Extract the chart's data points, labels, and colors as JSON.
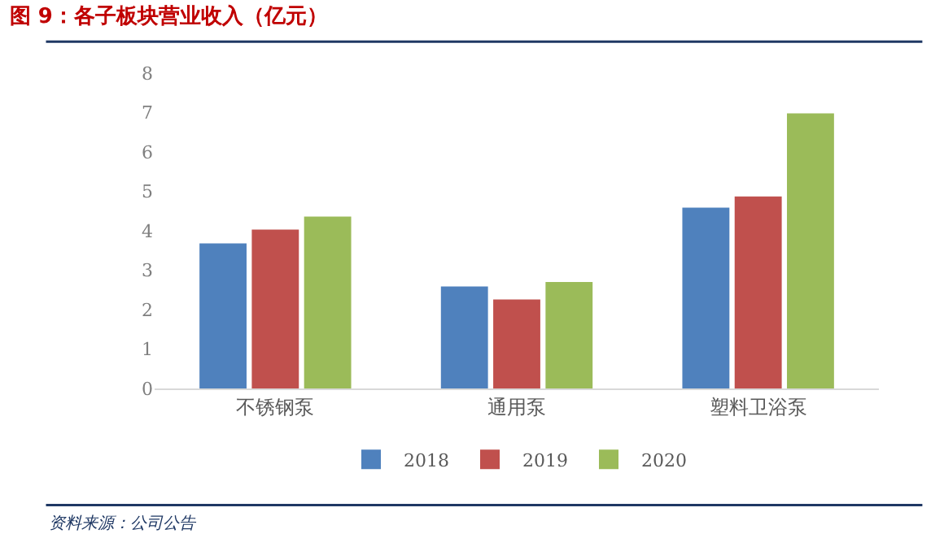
{
  "chart_data": {
    "type": "bar",
    "title": "图 9：各子板块营业收入（亿元）",
    "categories": [
      "不锈钢泵",
      "通用泵",
      "塑料卫浴泵"
    ],
    "series": [
      {
        "name": "2018",
        "color": "#4f81bd",
        "values": [
          3.68,
          2.59,
          4.59
        ]
      },
      {
        "name": "2019",
        "color": "#c0504d",
        "values": [
          4.03,
          2.26,
          4.87
        ]
      },
      {
        "name": "2020",
        "color": "#9bbb59",
        "values": [
          4.36,
          2.7,
          6.98
        ]
      }
    ],
    "ylim": [
      0,
      8
    ],
    "yticks": [
      0,
      1,
      2,
      3,
      4,
      5,
      6,
      7,
      8
    ],
    "legend": "bottom",
    "annotations": [
      "资料来源：公司公告"
    ]
  }
}
